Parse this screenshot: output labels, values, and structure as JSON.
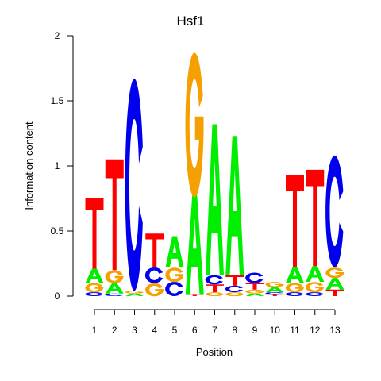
{
  "chart_data": {
    "type": "sequence-logo",
    "title": "Hsf1",
    "xlabel": "Position",
    "ylabel": "Information content",
    "ylim": [
      0,
      2
    ],
    "yticks": [
      "0",
      "0.5",
      "1",
      "1.5",
      "2"
    ],
    "xticks": [
      "1",
      "2",
      "3",
      "4",
      "5",
      "6",
      "7",
      "8",
      "9",
      "10",
      "11",
      "12",
      "13"
    ],
    "colors": {
      "A": "#00ee00",
      "C": "#0000ee",
      "G": "#f5a000",
      "T": "#ff0000"
    },
    "positions": [
      {
        "pos": "1",
        "letters": [
          {
            "b": "C",
            "h": 0.03
          },
          {
            "b": "G",
            "h": 0.07
          },
          {
            "b": "A",
            "h": 0.11
          },
          {
            "b": "T",
            "h": 0.54
          }
        ]
      },
      {
        "pos": "2",
        "letters": [
          {
            "b": "C",
            "h": 0.02
          },
          {
            "b": "A",
            "h": 0.08
          },
          {
            "b": "G",
            "h": 0.1
          },
          {
            "b": "T",
            "h": 0.85
          }
        ]
      },
      {
        "pos": "3",
        "letters": [
          {
            "b": "A",
            "h": 0.02
          },
          {
            "b": "G",
            "h": 0.02
          },
          {
            "b": "C",
            "h": 1.63
          }
        ]
      },
      {
        "pos": "4",
        "letters": [
          {
            "b": "G",
            "h": 0.1
          },
          {
            "b": "C",
            "h": 0.12
          },
          {
            "b": "T",
            "h": 0.26
          }
        ]
      },
      {
        "pos": "5",
        "letters": [
          {
            "b": "C",
            "h": 0.11
          },
          {
            "b": "G",
            "h": 0.11
          },
          {
            "b": "A",
            "h": 0.24
          }
        ]
      },
      {
        "pos": "6",
        "letters": [
          {
            "b": "T",
            "h": 0.01
          },
          {
            "b": "A",
            "h": 0.77
          },
          {
            "b": "G",
            "h": 1.11
          }
        ]
      },
      {
        "pos": "7",
        "letters": [
          {
            "b": "G",
            "h": 0.03
          },
          {
            "b": "T",
            "h": 0.06
          },
          {
            "b": "C",
            "h": 0.07
          },
          {
            "b": "A",
            "h": 1.16
          }
        ]
      },
      {
        "pos": "8",
        "letters": [
          {
            "b": "G",
            "h": 0.03
          },
          {
            "b": "C",
            "h": 0.05
          },
          {
            "b": "T",
            "h": 0.08
          },
          {
            "b": "A",
            "h": 1.07
          }
        ]
      },
      {
        "pos": "9",
        "letters": [
          {
            "b": "A",
            "h": 0.02
          },
          {
            "b": "G",
            "h": 0.03
          },
          {
            "b": "T",
            "h": 0.05
          },
          {
            "b": "C",
            "h": 0.08
          }
        ]
      },
      {
        "pos": "10",
        "letters": [
          {
            "b": "T",
            "h": 0.01
          },
          {
            "b": "C",
            "h": 0.02
          },
          {
            "b": "A",
            "h": 0.04
          },
          {
            "b": "G",
            "h": 0.04
          }
        ]
      },
      {
        "pos": "11",
        "letters": [
          {
            "b": "C",
            "h": 0.03
          },
          {
            "b": "G",
            "h": 0.07
          },
          {
            "b": "A",
            "h": 0.12
          },
          {
            "b": "T",
            "h": 0.71
          }
        ]
      },
      {
        "pos": "12",
        "letters": [
          {
            "b": "C",
            "h": 0.03
          },
          {
            "b": "G",
            "h": 0.08
          },
          {
            "b": "A",
            "h": 0.12
          },
          {
            "b": "T",
            "h": 0.74
          }
        ]
      },
      {
        "pos": "13",
        "letters": [
          {
            "b": "T",
            "h": 0.05
          },
          {
            "b": "A",
            "h": 0.09
          },
          {
            "b": "G",
            "h": 0.08
          },
          {
            "b": "C",
            "h": 0.86
          }
        ]
      }
    ]
  }
}
